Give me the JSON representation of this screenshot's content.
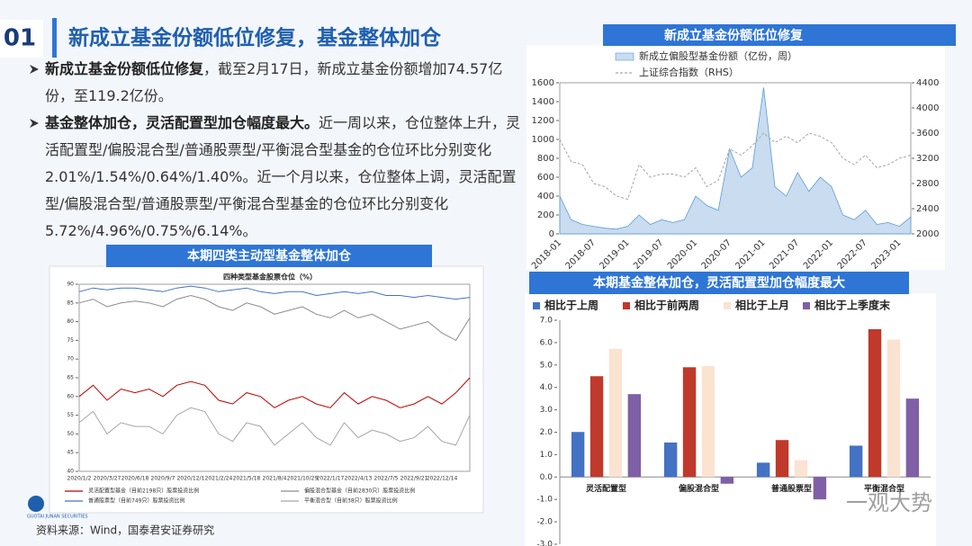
{
  "header": {
    "number": "01",
    "title": "新成立基金份额低位修复，基金整体加仓"
  },
  "bullets": [
    {
      "bold": "新成立基金份额低位修复",
      "text": "，截至2月17日，新成立基金份额增加74.57亿份，至119.2亿份。"
    },
    {
      "bold": "基金整体加仓，灵活配置型加仓幅度最大。",
      "text": "近一周以来，仓位整体上升，灵活配置型/偏股混合型/普通股票型/平衡混合型基金的仓位环比分别变化2.01%/1.54%/0.64%/1.40%。近一个月以来，仓位整体上调，灵活配置型/偏股混合型/普通股票型/平衡混合型基金的仓位环比分别变化5.72%/4.96%/0.75%/6.14%。"
    }
  ],
  "source": "资料来源：Wind，国泰君安证券研究",
  "logo": "GUOTAI JUNAN SECURITIES",
  "watermark": "一观大势",
  "chart_data": [
    {
      "type": "line",
      "title": "新成立基金份额低位修复",
      "categories": [
        "2018-01",
        null,
        null,
        "2018-07",
        null,
        null,
        "2019-01",
        null,
        null,
        "2019-07",
        null,
        null,
        "2020-01",
        null,
        null,
        "2020-07",
        null,
        null,
        "2021-01",
        null,
        null,
        "2021-07",
        null,
        null,
        "2022-01",
        null,
        null,
        "2022-07",
        null,
        null,
        "2023-01",
        null
      ],
      "series": [
        {
          "name": "新成立偏股型基金份额（亿份，周）",
          "type": "area",
          "color": "#5b9bd5",
          "fill": "#c9dcf0",
          "values": [
            400,
            150,
            100,
            80,
            60,
            50,
            80,
            200,
            100,
            150,
            120,
            150,
            400,
            300,
            250,
            900,
            600,
            700,
            1550,
            500,
            400,
            650,
            450,
            600,
            500,
            200,
            150,
            250,
            100,
            120,
            80,
            180
          ]
        },
        {
          "name": "上证综合指数（RHS）",
          "type": "line",
          "style": "dashed",
          "axis": "y2",
          "color": "#a6a6a6",
          "values": [
            3500,
            3150,
            3100,
            2800,
            2750,
            2600,
            2550,
            3100,
            2900,
            2950,
            2950,
            2900,
            3050,
            2750,
            2850,
            3350,
            3250,
            3400,
            3600,
            3450,
            3550,
            3450,
            3600,
            3550,
            3450,
            3200,
            3100,
            3250,
            3050,
            3100,
            3200,
            3250
          ]
        }
      ],
      "ylim": [
        0,
        1600
      ],
      "yticks": [
        0,
        200,
        400,
        600,
        800,
        1000,
        1200,
        1400,
        1600
      ],
      "y2lim": [
        2000,
        4400
      ],
      "y2ticks": [
        2000,
        2400,
        2800,
        3200,
        3600,
        4000,
        4400
      ]
    },
    {
      "type": "line",
      "title": "本期四类主动型基金整体加仓",
      "subtitle": "四种类型基金股票仓位（%）",
      "categories": [
        "2020/1/2",
        null,
        "2020/3/27",
        null,
        "2020/6/18",
        null,
        "2020/9/7",
        null,
        "2020/12/1",
        null,
        "2021/2/24",
        null,
        "2021/5/18",
        null,
        "2021/8/4",
        null,
        "2021/10/29",
        null,
        "2022/1/17",
        null,
        "2022/4/13",
        null,
        "2022/7/5",
        null,
        "2022/9/21",
        null,
        "2022/12/14",
        null,
        null
      ],
      "series": [
        {
          "name": "灵活配置型基金（目前2198只）股票投资比例",
          "color": "#c00000",
          "values": [
            60,
            63,
            59,
            62,
            61,
            62,
            60,
            63,
            64,
            63,
            59,
            58,
            61,
            60,
            57,
            59,
            60,
            58,
            57,
            61,
            58,
            60,
            59,
            57,
            58,
            60,
            58,
            61,
            65
          ]
        },
        {
          "name": "偏股混合型基金（目前2830只）股票投资比例",
          "color": "#8c8c8c",
          "values": [
            85,
            86,
            84,
            85,
            85.5,
            85,
            84,
            86,
            87,
            86,
            84,
            83,
            85,
            84,
            82,
            83,
            84,
            82,
            81,
            83,
            81,
            82,
            80,
            78,
            79,
            80,
            77,
            75,
            81
          ]
        },
        {
          "name": "普通股票型（目前749只）股票投资比例",
          "color": "#4472c4",
          "values": [
            88,
            89,
            88.5,
            89,
            89,
            88.5,
            88,
            89,
            89.5,
            89,
            88,
            88.5,
            89,
            88,
            87.5,
            88,
            88,
            87,
            87.5,
            88,
            87.5,
            88,
            87,
            87,
            86.5,
            87,
            86.5,
            86,
            86.5
          ]
        },
        {
          "name": "平衡混合型（目前38只）股票投资比例",
          "color": "#a6a6a6",
          "values": [
            53,
            56,
            50,
            53,
            52,
            52,
            50,
            55,
            57,
            56,
            50,
            48,
            53,
            52,
            47,
            50,
            53,
            49,
            47,
            53,
            49,
            51,
            50,
            48,
            49,
            52,
            48,
            47,
            55
          ]
        }
      ],
      "ylim": [
        40,
        90
      ],
      "yticks": [
        40,
        45,
        50,
        55,
        60,
        65,
        70,
        75,
        80,
        85,
        90
      ]
    },
    {
      "type": "bar",
      "title": "本期基金整体加仓，灵活配置型加仓幅度最大",
      "categories": [
        "灵活配置型",
        "偏股混合型",
        "普通股票型",
        "平衡混合型"
      ],
      "series": [
        {
          "name": "相比于上周",
          "color": "#4472c4",
          "values": [
            2.01,
            1.54,
            0.64,
            1.4
          ]
        },
        {
          "name": "相比于前两周",
          "color": "#c0392b",
          "values": [
            4.5,
            4.9,
            1.65,
            6.6
          ]
        },
        {
          "name": "相比于上月",
          "color": "#fbe3d2",
          "values": [
            5.72,
            4.96,
            0.75,
            6.14
          ]
        },
        {
          "name": "相比于上季度末",
          "color": "#7f5fa6",
          "values": [
            3.7,
            -0.3,
            -1.0,
            3.5
          ]
        }
      ],
      "ylim": [
        -3,
        7
      ],
      "yticks": [
        {
          "value": -3,
          "label": "-3.0"
        },
        {
          "value": -2,
          "label": "-2.0"
        },
        {
          "value": -1,
          "label": "-1.0"
        },
        {
          "value": 0,
          "label": "0.0"
        },
        {
          "value": 1,
          "label": "1.0"
        },
        {
          "value": 2,
          "label": "2.0"
        },
        {
          "value": 3,
          "label": "3.0"
        },
        {
          "value": 4,
          "label": "4.0"
        },
        {
          "value": 5,
          "label": "5.0"
        },
        {
          "value": 6,
          "label": "6.0"
        },
        {
          "value": 7,
          "label": "7.0"
        }
      ]
    }
  ]
}
